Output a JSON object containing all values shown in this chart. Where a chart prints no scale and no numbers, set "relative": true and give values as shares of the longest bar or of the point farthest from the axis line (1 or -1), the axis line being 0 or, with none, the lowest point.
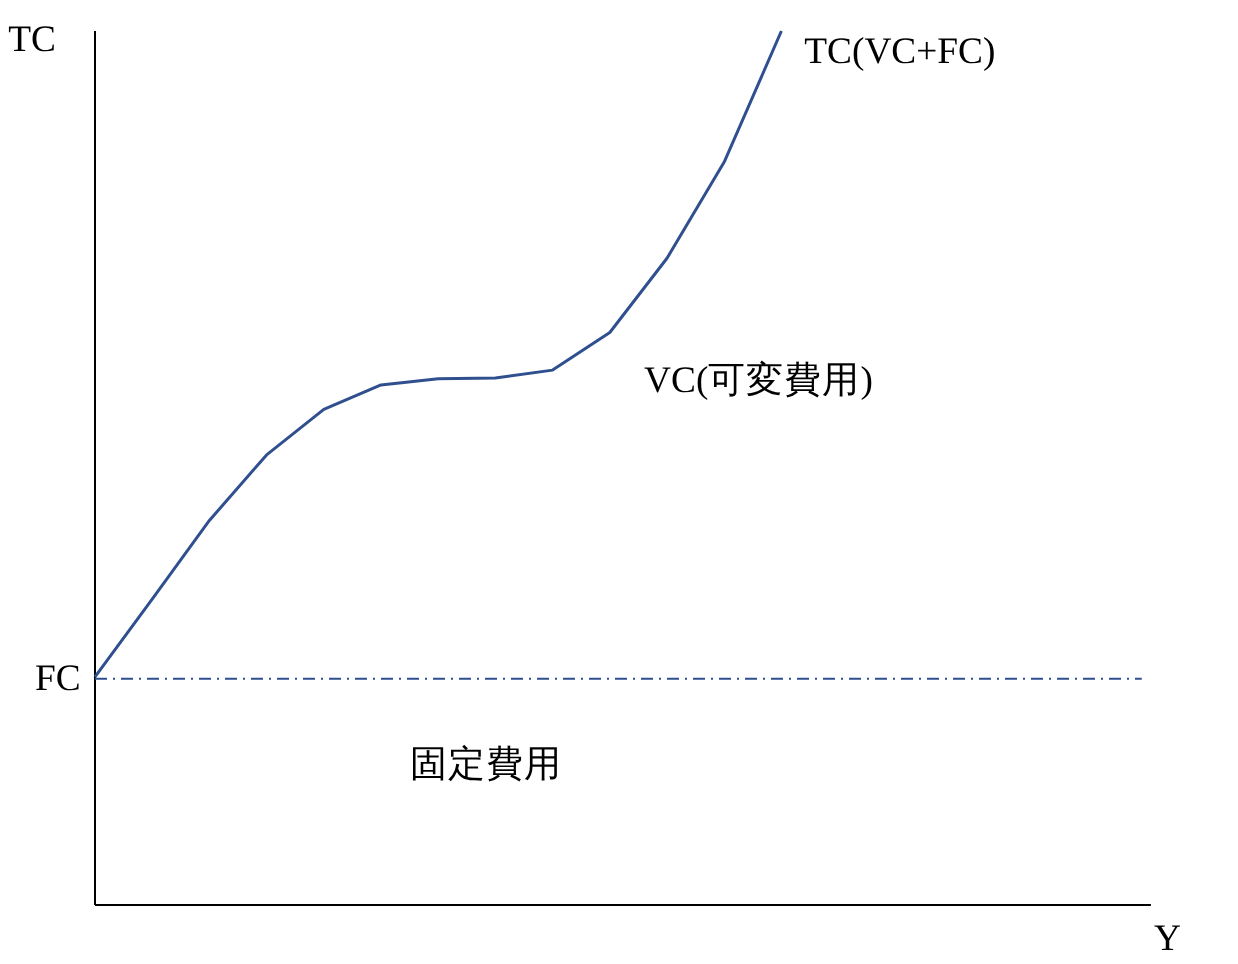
{
  "chart_data": {
    "type": "line",
    "relative": true,
    "ylabel": "TC",
    "xlabel": "Y",
    "categories": [
      null,
      null,
      null,
      null,
      null,
      null,
      null,
      null,
      null,
      null,
      null,
      null,
      null,
      null,
      null,
      null,
      null,
      null,
      null
    ],
    "series": [
      {
        "name": "TC(VC+FC)",
        "color": "#2f4f8f",
        "values": [
          0.261,
          0.35,
          0.44,
          0.515,
          0.567,
          0.595,
          0.602,
          0.603,
          0.612,
          0.655,
          0.74,
          0.85,
          1.0,
          null,
          null,
          null,
          null,
          null,
          null
        ]
      }
    ],
    "ref_lines": [
      {
        "axis": "y",
        "value": 0.259,
        "label": "FC",
        "color": "#2f4f8f",
        "line_style": "dashdot"
      }
    ],
    "annotations": [
      "VC(可変費用)",
      "固定費用"
    ]
  }
}
